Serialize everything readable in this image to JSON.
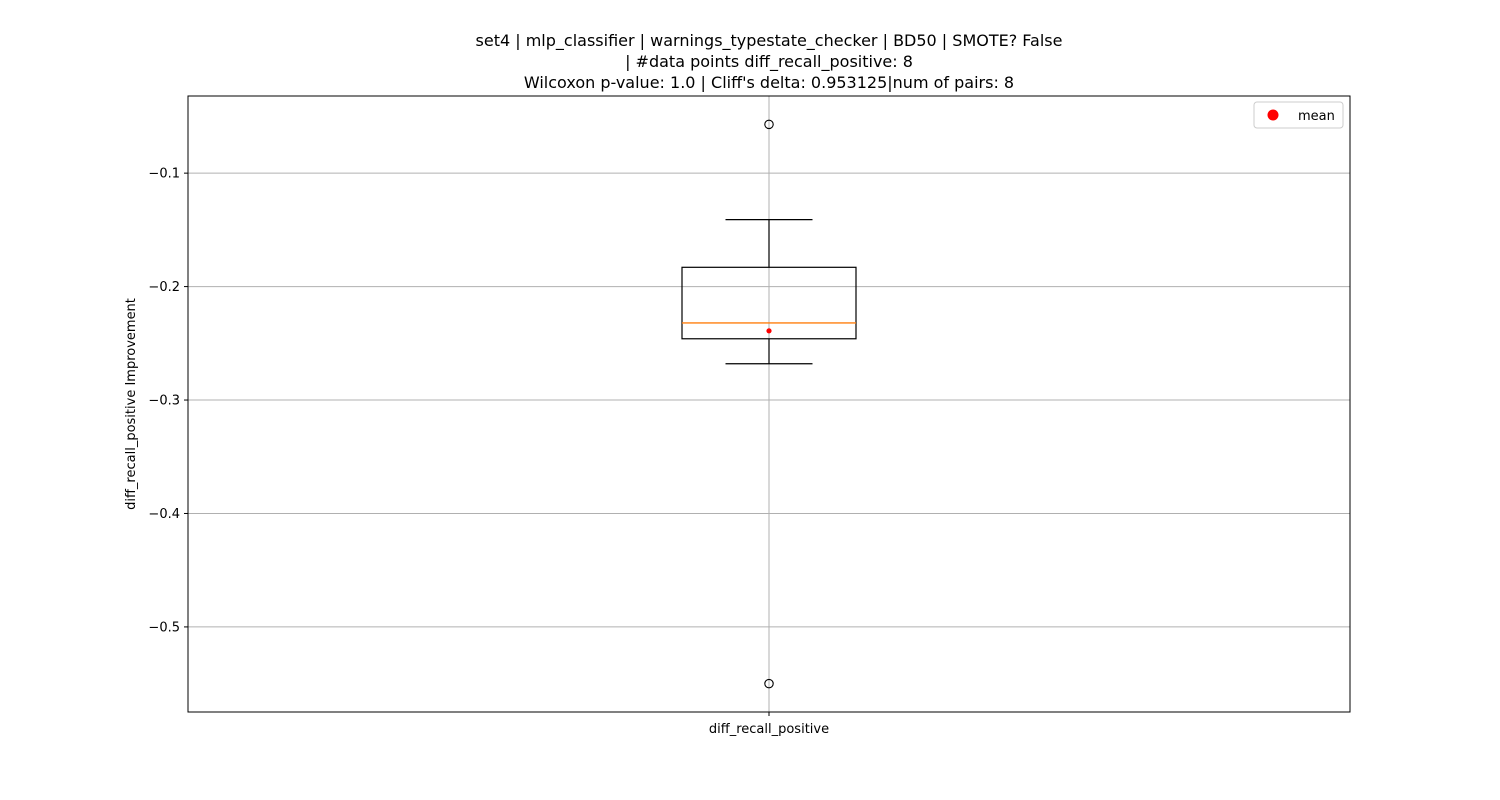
{
  "chart_data": {
    "type": "box",
    "title_lines": [
      "set4 | mlp_classifier | warnings_typestate_checker | BD50 | SMOTE? False",
      "| #data points diff_recall_positive: 8",
      "Wilcoxon p-value: 1.0 | Cliff's delta: 0.953125|num of pairs: 8"
    ],
    "xlabel": "",
    "ylabel": "diff_recall_positive Improvement",
    "categories": [
      "diff_recall_positive"
    ],
    "ylim": [
      -0.575,
      -0.032
    ],
    "yticks": [
      -0.1,
      -0.2,
      -0.3,
      -0.4,
      -0.5
    ],
    "ytick_labels": [
      "−0.1",
      "−0.2",
      "−0.3",
      "−0.4",
      "−0.5"
    ],
    "grid": true,
    "legend": {
      "location": "top-right",
      "entries": [
        {
          "label": "mean",
          "color": "#ff0000",
          "marker": "circle"
        }
      ]
    },
    "box": {
      "whisker_low": -0.268,
      "q1": -0.246,
      "median": -0.232,
      "q3": -0.183,
      "whisker_high": -0.141,
      "mean": -0.239,
      "outliers": [
        -0.057,
        -0.55
      ]
    },
    "colors": {
      "box": "#000000",
      "median": "#ff7f0e",
      "mean": "#ff0000",
      "grid": "#b0b0b0"
    }
  }
}
